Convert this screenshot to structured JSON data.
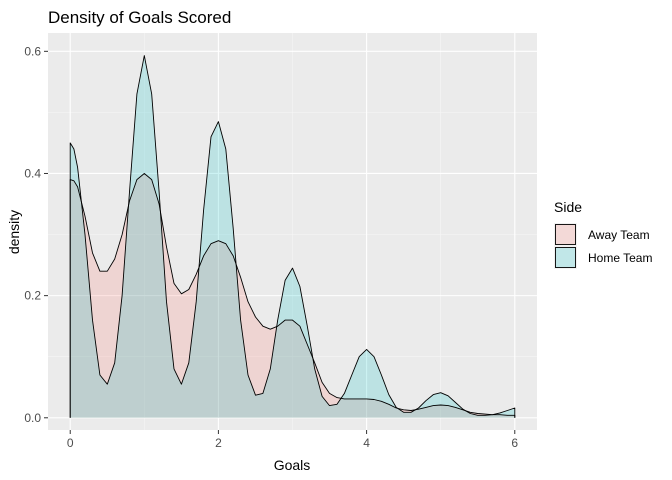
{
  "chart_data": {
    "type": "area",
    "title": "Density of Goals Scored",
    "xlabel": "Goals",
    "ylabel": "density",
    "xlim": [
      -0.3,
      6.3
    ],
    "ylim": [
      -0.02,
      0.63
    ],
    "x_ticks": [
      0,
      2,
      4,
      6
    ],
    "y_ticks": [
      0.0,
      0.2,
      0.4,
      0.6
    ],
    "x_tick_labels": [
      "0",
      "2",
      "4",
      "6"
    ],
    "y_tick_labels": [
      "0.0",
      "0.2",
      "0.4",
      "0.6"
    ],
    "grid": true,
    "legend": {
      "title": "Side",
      "position": "right"
    },
    "series": [
      {
        "name": "Away Team",
        "fill": "#F8766D",
        "points": [
          [
            0.0,
            0.39
          ],
          [
            0.05,
            0.388
          ],
          [
            0.1,
            0.378
          ],
          [
            0.2,
            0.33
          ],
          [
            0.3,
            0.27
          ],
          [
            0.4,
            0.24
          ],
          [
            0.5,
            0.24
          ],
          [
            0.6,
            0.26
          ],
          [
            0.7,
            0.3
          ],
          [
            0.8,
            0.355
          ],
          [
            0.9,
            0.39
          ],
          [
            1.0,
            0.4
          ],
          [
            1.1,
            0.39
          ],
          [
            1.2,
            0.35
          ],
          [
            1.3,
            0.28
          ],
          [
            1.4,
            0.22
          ],
          [
            1.5,
            0.203
          ],
          [
            1.6,
            0.21
          ],
          [
            1.7,
            0.235
          ],
          [
            1.8,
            0.265
          ],
          [
            1.9,
            0.285
          ],
          [
            2.0,
            0.29
          ],
          [
            2.1,
            0.285
          ],
          [
            2.2,
            0.265
          ],
          [
            2.3,
            0.23
          ],
          [
            2.4,
            0.19
          ],
          [
            2.5,
            0.165
          ],
          [
            2.6,
            0.15
          ],
          [
            2.7,
            0.145
          ],
          [
            2.8,
            0.15
          ],
          [
            2.9,
            0.16
          ],
          [
            3.0,
            0.16
          ],
          [
            3.1,
            0.15
          ],
          [
            3.2,
            0.12
          ],
          [
            3.3,
            0.09
          ],
          [
            3.4,
            0.058
          ],
          [
            3.5,
            0.04
          ],
          [
            3.6,
            0.033
          ],
          [
            3.7,
            0.031
          ],
          [
            3.8,
            0.031
          ],
          [
            3.9,
            0.031
          ],
          [
            4.0,
            0.031
          ],
          [
            4.1,
            0.03
          ],
          [
            4.2,
            0.027
          ],
          [
            4.3,
            0.022
          ],
          [
            4.4,
            0.016
          ],
          [
            4.5,
            0.013
          ],
          [
            4.6,
            0.012
          ],
          [
            4.7,
            0.014
          ],
          [
            4.8,
            0.017
          ],
          [
            4.9,
            0.02
          ],
          [
            5.0,
            0.021
          ],
          [
            5.1,
            0.02
          ],
          [
            5.2,
            0.017
          ],
          [
            5.3,
            0.013
          ],
          [
            5.4,
            0.009
          ],
          [
            5.5,
            0.007
          ],
          [
            5.6,
            0.006
          ],
          [
            5.7,
            0.005
          ],
          [
            5.8,
            0.005
          ],
          [
            5.9,
            0.004
          ],
          [
            6.0,
            0.004
          ]
        ]
      },
      {
        "name": "Home Team",
        "fill": "#00BFC4",
        "points": [
          [
            0.0,
            0.45
          ],
          [
            0.05,
            0.44
          ],
          [
            0.1,
            0.41
          ],
          [
            0.2,
            0.3
          ],
          [
            0.3,
            0.16
          ],
          [
            0.4,
            0.07
          ],
          [
            0.5,
            0.055
          ],
          [
            0.6,
            0.09
          ],
          [
            0.7,
            0.2
          ],
          [
            0.8,
            0.37
          ],
          [
            0.9,
            0.53
          ],
          [
            1.0,
            0.593
          ],
          [
            1.1,
            0.53
          ],
          [
            1.2,
            0.37
          ],
          [
            1.3,
            0.19
          ],
          [
            1.4,
            0.08
          ],
          [
            1.5,
            0.055
          ],
          [
            1.6,
            0.09
          ],
          [
            1.7,
            0.19
          ],
          [
            1.8,
            0.34
          ],
          [
            1.9,
            0.46
          ],
          [
            2.0,
            0.485
          ],
          [
            2.1,
            0.44
          ],
          [
            2.2,
            0.31
          ],
          [
            2.3,
            0.16
          ],
          [
            2.4,
            0.07
          ],
          [
            2.5,
            0.037
          ],
          [
            2.6,
            0.04
          ],
          [
            2.7,
            0.08
          ],
          [
            2.8,
            0.16
          ],
          [
            2.9,
            0.225
          ],
          [
            3.0,
            0.245
          ],
          [
            3.1,
            0.215
          ],
          [
            3.2,
            0.15
          ],
          [
            3.3,
            0.08
          ],
          [
            3.4,
            0.035
          ],
          [
            3.5,
            0.02
          ],
          [
            3.6,
            0.022
          ],
          [
            3.7,
            0.04
          ],
          [
            3.8,
            0.07
          ],
          [
            3.9,
            0.1
          ],
          [
            4.0,
            0.112
          ],
          [
            4.1,
            0.1
          ],
          [
            4.2,
            0.07
          ],
          [
            4.3,
            0.038
          ],
          [
            4.4,
            0.017
          ],
          [
            4.5,
            0.009
          ],
          [
            4.6,
            0.009
          ],
          [
            4.7,
            0.016
          ],
          [
            4.8,
            0.028
          ],
          [
            4.9,
            0.038
          ],
          [
            5.0,
            0.041
          ],
          [
            5.1,
            0.036
          ],
          [
            5.2,
            0.025
          ],
          [
            5.3,
            0.014
          ],
          [
            5.4,
            0.007
          ],
          [
            5.5,
            0.004
          ],
          [
            5.6,
            0.004
          ],
          [
            5.7,
            0.005
          ],
          [
            5.8,
            0.008
          ],
          [
            5.9,
            0.012
          ],
          [
            6.0,
            0.016
          ]
        ]
      }
    ]
  }
}
